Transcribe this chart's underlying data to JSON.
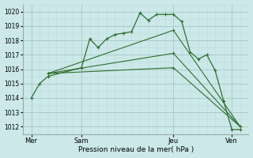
{
  "xlabel": "Pression niveau de la mer( hPa )",
  "background_color": "#cce8e8",
  "grid_color_major": "#aacccc",
  "grid_color_minor": "#bbdddd",
  "line_color": "#2d6e2d",
  "ylim": [
    1011.5,
    1020.5
  ],
  "xlim": [
    0,
    13.5
  ],
  "yticks": [
    1012,
    1013,
    1014,
    1015,
    1016,
    1017,
    1018,
    1019,
    1020
  ],
  "xtick_labels": [
    "Mer",
    "Sam",
    "Jeu",
    "Ven"
  ],
  "xtick_positions": [
    0.5,
    3.5,
    9.0,
    12.5
  ],
  "vlines": [
    0.5,
    3.5,
    9.0,
    12.5
  ],
  "series": [
    {
      "x": [
        0.5,
        1.0,
        1.5,
        3.5,
        4.0,
        4.5,
        5.0,
        5.5,
        6.0,
        6.5,
        7.0,
        7.5,
        8.0,
        8.5,
        9.0,
        9.5,
        10.0,
        10.5,
        11.0,
        11.5,
        12.0,
        12.5,
        13.0
      ],
      "y": [
        1014.0,
        1015.0,
        1015.5,
        1016.1,
        1018.1,
        1017.5,
        1018.1,
        1018.4,
        1018.5,
        1018.6,
        1019.9,
        1019.4,
        1019.8,
        1019.8,
        1019.8,
        1019.3,
        1017.2,
        1016.7,
        1017.0,
        1015.9,
        1013.8,
        1011.8,
        1011.8
      ]
    },
    {
      "x": [
        1.5,
        9.0,
        13.0
      ],
      "y": [
        1015.7,
        1018.7,
        1012.0
      ]
    },
    {
      "x": [
        1.5,
        9.0,
        13.0
      ],
      "y": [
        1015.7,
        1017.1,
        1012.0
      ]
    },
    {
      "x": [
        1.5,
        9.0,
        13.0
      ],
      "y": [
        1015.7,
        1016.1,
        1012.0
      ]
    }
  ]
}
